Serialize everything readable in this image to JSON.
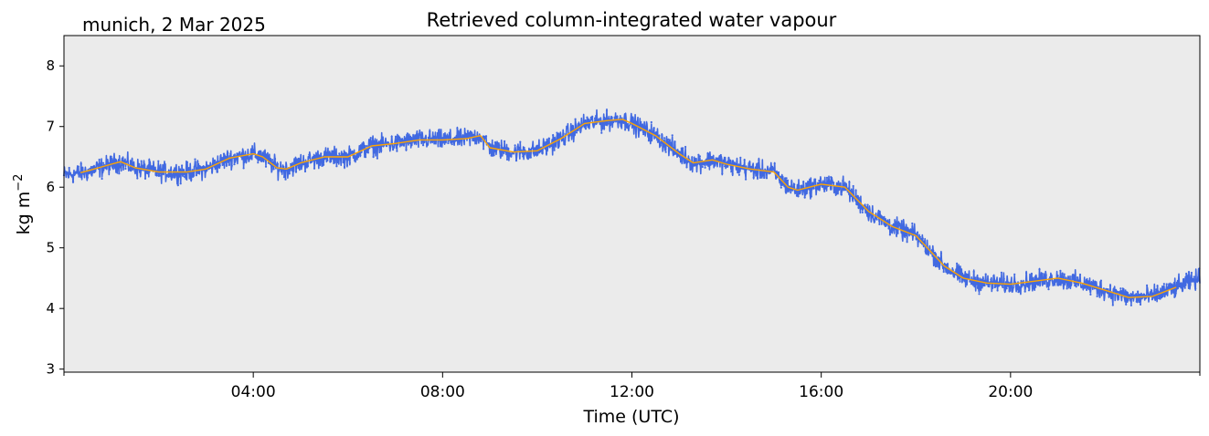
{
  "chart_data": {
    "type": "scatter",
    "title": "Retrieved column-integrated water vapour",
    "location_date": "munich, 2 Mar 2025",
    "xlabel": "Time (UTC)",
    "ylabel_main": "kg m",
    "ylabel_sup": "−2",
    "xlim": [
      0,
      24
    ],
    "ylim": [
      2.95,
      8.5
    ],
    "yticks": [
      {
        "value": 3,
        "label": "3"
      },
      {
        "value": 4,
        "label": "4"
      },
      {
        "value": 5,
        "label": "5"
      },
      {
        "value": 6,
        "label": "6"
      },
      {
        "value": 7,
        "label": "7"
      },
      {
        "value": 8,
        "label": "8"
      }
    ],
    "xticks": [
      {
        "value": 4,
        "label": "04:00"
      },
      {
        "value": 8,
        "label": "08:00"
      },
      {
        "value": 12,
        "label": "12:00"
      },
      {
        "value": 16,
        "label": "16:00"
      },
      {
        "value": 20,
        "label": "20:00"
      }
    ],
    "xticks_minor": [
      0,
      24
    ],
    "grid": false,
    "background": "#ebebeb",
    "series": [
      {
        "kind": "scatter-band",
        "color": "#4169e1",
        "x": [
          0.0,
          0.5,
          1.0,
          1.2,
          1.5,
          2.0,
          2.6,
          3.0,
          3.5,
          4.0,
          4.2,
          4.5,
          4.7,
          5.0,
          5.5,
          6.0,
          6.5,
          7.0,
          7.5,
          8.0,
          8.5,
          8.8,
          9.0,
          9.5,
          10.0,
          10.5,
          11.0,
          11.5,
          11.8,
          12.0,
          12.5,
          13.0,
          13.3,
          13.7,
          14.0,
          14.5,
          15.0,
          15.3,
          15.5,
          16.0,
          16.5,
          17.0,
          17.5,
          18.0,
          18.3,
          18.6,
          19.0,
          19.5,
          20.0,
          20.5,
          21.0,
          21.5,
          22.0,
          22.5,
          23.0,
          23.5,
          24.0
        ],
        "y": [
          6.2,
          6.25,
          6.38,
          6.42,
          6.32,
          6.25,
          6.25,
          6.3,
          6.48,
          6.55,
          6.5,
          6.32,
          6.3,
          6.4,
          6.5,
          6.5,
          6.68,
          6.72,
          6.78,
          6.78,
          6.8,
          6.85,
          6.65,
          6.58,
          6.6,
          6.8,
          7.05,
          7.1,
          7.12,
          7.05,
          6.85,
          6.55,
          6.4,
          6.45,
          6.38,
          6.3,
          6.25,
          6.0,
          5.95,
          6.05,
          6.0,
          5.6,
          5.35,
          5.2,
          4.95,
          4.7,
          4.5,
          4.42,
          4.4,
          4.45,
          4.5,
          4.42,
          4.3,
          4.18,
          4.2,
          4.35,
          4.5
        ],
        "spread": 0.12
      },
      {
        "kind": "line",
        "color": "#ffa500",
        "x": [
          0.35,
          0.5,
          1.0,
          1.2,
          1.5,
          2.0,
          2.6,
          3.0,
          3.5,
          4.0,
          4.2,
          4.5,
          4.7,
          5.0,
          5.5,
          6.0,
          6.5,
          7.0,
          7.5,
          8.0,
          8.5,
          8.8,
          9.0,
          9.5,
          10.0,
          10.5,
          11.0,
          11.5,
          11.8,
          12.0,
          12.5,
          13.0,
          13.3,
          13.7,
          14.0,
          14.5,
          15.0,
          15.3,
          15.5,
          16.0,
          16.5,
          17.0,
          17.5,
          18.0,
          18.3,
          18.6,
          19.0,
          19.5,
          20.0,
          20.5,
          21.0,
          21.5,
          22.0,
          22.5,
          23.0,
          23.5
        ],
        "y": [
          6.24,
          6.27,
          6.38,
          6.42,
          6.32,
          6.25,
          6.25,
          6.3,
          6.48,
          6.55,
          6.5,
          6.32,
          6.3,
          6.4,
          6.5,
          6.5,
          6.68,
          6.72,
          6.78,
          6.78,
          6.8,
          6.85,
          6.65,
          6.58,
          6.6,
          6.8,
          7.05,
          7.1,
          7.12,
          7.05,
          6.85,
          6.55,
          6.4,
          6.45,
          6.38,
          6.3,
          6.25,
          6.0,
          5.95,
          6.05,
          6.0,
          5.6,
          5.35,
          5.2,
          4.95,
          4.7,
          4.5,
          4.42,
          4.4,
          4.45,
          4.5,
          4.42,
          4.3,
          4.18,
          4.2,
          4.35
        ]
      }
    ]
  }
}
